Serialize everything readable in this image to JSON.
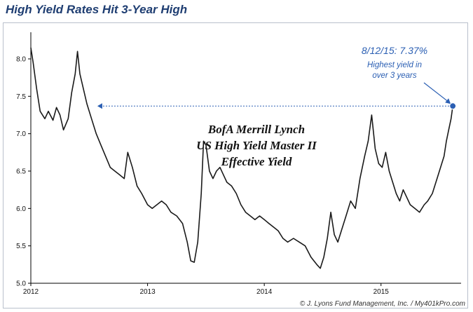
{
  "chart_data": {
    "type": "line",
    "title": "High Yield Rates Hit 3-Year High",
    "series": [
      {
        "name": "BofA Merrill Lynch US High Yield Master II Effective Yield",
        "color": "#1a1a1a",
        "points": [
          [
            2012.0,
            8.15
          ],
          [
            2012.02,
            7.95
          ],
          [
            2012.05,
            7.6
          ],
          [
            2012.08,
            7.3
          ],
          [
            2012.12,
            7.2
          ],
          [
            2012.15,
            7.3
          ],
          [
            2012.19,
            7.18
          ],
          [
            2012.22,
            7.35
          ],
          [
            2012.25,
            7.25
          ],
          [
            2012.28,
            7.05
          ],
          [
            2012.32,
            7.2
          ],
          [
            2012.35,
            7.55
          ],
          [
            2012.38,
            7.8
          ],
          [
            2012.4,
            8.1
          ],
          [
            2012.42,
            7.8
          ],
          [
            2012.45,
            7.6
          ],
          [
            2012.48,
            7.4
          ],
          [
            2012.52,
            7.2
          ],
          [
            2012.56,
            7.0
          ],
          [
            2012.6,
            6.85
          ],
          [
            2012.64,
            6.7
          ],
          [
            2012.68,
            6.55
          ],
          [
            2012.72,
            6.5
          ],
          [
            2012.76,
            6.45
          ],
          [
            2012.8,
            6.4
          ],
          [
            2012.83,
            6.75
          ],
          [
            2012.87,
            6.55
          ],
          [
            2012.91,
            6.3
          ],
          [
            2012.95,
            6.2
          ],
          [
            2013.0,
            6.05
          ],
          [
            2013.04,
            6.0
          ],
          [
            2013.08,
            6.05
          ],
          [
            2013.12,
            6.1
          ],
          [
            2013.16,
            6.05
          ],
          [
            2013.2,
            5.95
          ],
          [
            2013.25,
            5.9
          ],
          [
            2013.3,
            5.8
          ],
          [
            2013.34,
            5.55
          ],
          [
            2013.37,
            5.3
          ],
          [
            2013.4,
            5.28
          ],
          [
            2013.43,
            5.55
          ],
          [
            2013.46,
            6.2
          ],
          [
            2013.48,
            6.9
          ],
          [
            2013.5,
            6.85
          ],
          [
            2013.53,
            6.5
          ],
          [
            2013.56,
            6.4
          ],
          [
            2013.59,
            6.5
          ],
          [
            2013.62,
            6.55
          ],
          [
            2013.65,
            6.45
          ],
          [
            2013.68,
            6.35
          ],
          [
            2013.72,
            6.3
          ],
          [
            2013.76,
            6.2
          ],
          [
            2013.8,
            6.05
          ],
          [
            2013.84,
            5.95
          ],
          [
            2013.88,
            5.9
          ],
          [
            2013.92,
            5.85
          ],
          [
            2013.96,
            5.9
          ],
          [
            2014.0,
            5.85
          ],
          [
            2014.04,
            5.8
          ],
          [
            2014.08,
            5.75
          ],
          [
            2014.12,
            5.7
          ],
          [
            2014.16,
            5.6
          ],
          [
            2014.2,
            5.55
          ],
          [
            2014.25,
            5.6
          ],
          [
            2014.3,
            5.55
          ],
          [
            2014.35,
            5.5
          ],
          [
            2014.4,
            5.35
          ],
          [
            2014.45,
            5.25
          ],
          [
            2014.48,
            5.2
          ],
          [
            2014.51,
            5.35
          ],
          [
            2014.54,
            5.6
          ],
          [
            2014.57,
            5.95
          ],
          [
            2014.6,
            5.65
          ],
          [
            2014.63,
            5.55
          ],
          [
            2014.66,
            5.7
          ],
          [
            2014.7,
            5.9
          ],
          [
            2014.74,
            6.1
          ],
          [
            2014.78,
            6.0
          ],
          [
            2014.82,
            6.4
          ],
          [
            2014.86,
            6.7
          ],
          [
            2014.89,
            6.9
          ],
          [
            2014.92,
            7.25
          ],
          [
            2014.95,
            6.8
          ],
          [
            2014.98,
            6.6
          ],
          [
            2015.01,
            6.55
          ],
          [
            2015.04,
            6.75
          ],
          [
            2015.07,
            6.5
          ],
          [
            2015.1,
            6.35
          ],
          [
            2015.13,
            6.2
          ],
          [
            2015.16,
            6.1
          ],
          [
            2015.19,
            6.25
          ],
          [
            2015.22,
            6.15
          ],
          [
            2015.25,
            6.05
          ],
          [
            2015.29,
            6.0
          ],
          [
            2015.33,
            5.95
          ],
          [
            2015.37,
            6.05
          ],
          [
            2015.4,
            6.1
          ],
          [
            2015.44,
            6.2
          ],
          [
            2015.48,
            6.4
          ],
          [
            2015.51,
            6.55
          ],
          [
            2015.54,
            6.7
          ],
          [
            2015.56,
            6.9
          ],
          [
            2015.58,
            7.05
          ],
          [
            2015.6,
            7.2
          ],
          [
            2015.615,
            7.37
          ]
        ]
      }
    ],
    "xlim": [
      2012.0,
      2015.65
    ],
    "ylim": [
      5.0,
      8.3
    ],
    "xticks": [
      {
        "value": 2012,
        "label": "2012"
      },
      {
        "value": 2013,
        "label": "2013"
      },
      {
        "value": 2014,
        "label": "2014"
      },
      {
        "value": 2015,
        "label": "2015"
      }
    ],
    "yticks": [
      {
        "value": 5.0,
        "label": "5.0"
      },
      {
        "value": 5.5,
        "label": "5.5"
      },
      {
        "value": 6.0,
        "label": "6.0"
      },
      {
        "value": 6.5,
        "label": "6.5"
      },
      {
        "value": 7.0,
        "label": "7.0"
      },
      {
        "value": 7.5,
        "label": "7.5"
      },
      {
        "value": 8.0,
        "label": "8.0"
      }
    ],
    "series_label_lines": [
      "BofA Merrill Lynch",
      "US High Yield Master II",
      "Effective Yield"
    ],
    "annotation": {
      "headline": "8/12/15: 7.37%",
      "lines": [
        "Highest yield in",
        "over 3 years"
      ],
      "point": {
        "x": 2015.615,
        "y": 7.37
      },
      "reference_line": {
        "y": 7.37,
        "x_from": 2012.57,
        "x_to": 2015.615
      },
      "color": "#2b5fb3"
    },
    "grid": false,
    "legend": "none",
    "credit": "© J. Lyons Fund Management, Inc. / My401kPro.com"
  }
}
